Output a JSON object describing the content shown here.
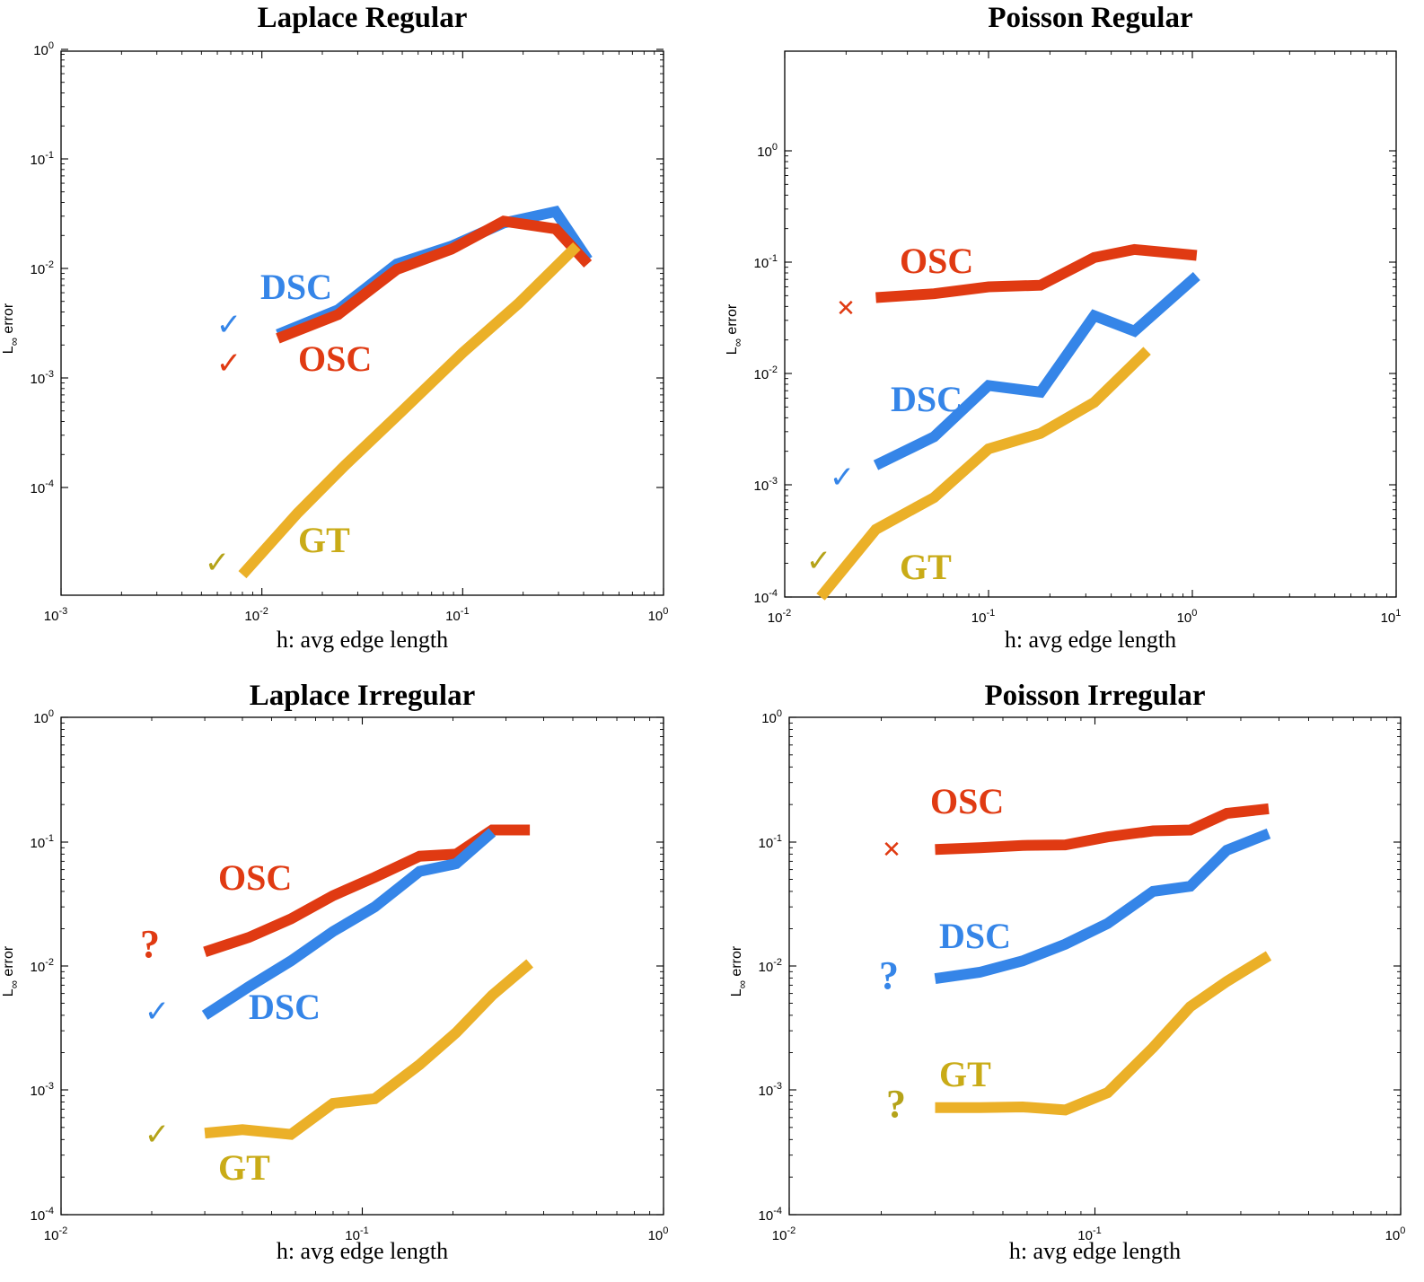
{
  "chart_data": [
    {
      "type": "line",
      "title": "Laplace Regular",
      "xlabel": "h: avg edge length",
      "ylabel_base": "L",
      "ylabel_sub": "∞",
      "ylabel_rest": " error",
      "xscale": "log",
      "yscale": "log",
      "xlim": [
        0.001,
        1
      ],
      "ylim": [
        1e-05,
        1
      ],
      "xticks": [
        -3,
        -2,
        -1,
        0
      ],
      "yticks": [
        -4,
        -3,
        -2,
        -1,
        0
      ],
      "tick_base": "10",
      "series": [
        {
          "key": "DSC",
          "color": "#3585e8",
          "x": [
            0.012,
            0.024,
            0.047,
            0.088,
            0.16,
            0.29,
            0.42
          ],
          "y": [
            0.0025,
            0.0042,
            0.011,
            0.016,
            0.026,
            0.033,
            0.012
          ]
        },
        {
          "key": "OSC",
          "color": "#e03a12",
          "x": [
            0.012,
            0.024,
            0.047,
            0.088,
            0.16,
            0.29,
            0.42
          ],
          "y": [
            0.0023,
            0.0038,
            0.0098,
            0.015,
            0.027,
            0.023,
            0.011
          ]
        },
        {
          "key": "GT",
          "color": "#ebb028",
          "x": [
            0.008,
            0.015,
            0.026,
            0.05,
            0.1,
            0.19,
            0.37
          ],
          "y": [
            1.6e-05,
            5.8e-05,
            0.00016,
            0.0005,
            0.0017,
            0.0048,
            0.016
          ]
        }
      ],
      "annotations": [
        {
          "text": "DSC",
          "color": "#3585e8"
        },
        {
          "text": "OSC",
          "color": "#e03a12"
        },
        {
          "text": "GT",
          "color": "#c9ab17"
        }
      ],
      "marks": [
        {
          "symbol": "✓",
          "color": "#3585e8"
        },
        {
          "symbol": "✓",
          "color": "#e03a12"
        },
        {
          "symbol": "✓",
          "color": "#b5a319"
        }
      ]
    },
    {
      "type": "line",
      "title": "Poisson Regular",
      "xlabel": "h: avg edge length",
      "ylabel_base": "L",
      "ylabel_sub": "∞",
      "ylabel_rest": " error",
      "xscale": "log",
      "yscale": "log",
      "xlim": [
        0.01,
        10
      ],
      "ylim": [
        0.0001,
        100
      ],
      "xticks": [
        -2,
        -1,
        0,
        1
      ],
      "yticks": [
        -4,
        -3,
        -2,
        -1,
        0
      ],
      "tick_base": "10",
      "series": [
        {
          "key": "OSC",
          "color": "#e03a12",
          "x": [
            0.028,
            0.054,
            0.1,
            0.18,
            0.33,
            0.52,
            1.05
          ],
          "y": [
            0.048,
            0.052,
            0.06,
            0.062,
            0.11,
            0.13,
            0.115
          ]
        },
        {
          "key": "DSC",
          "color": "#3585e8",
          "x": [
            0.028,
            0.054,
            0.1,
            0.18,
            0.33,
            0.52,
            1.05
          ],
          "y": [
            0.0015,
            0.0027,
            0.0078,
            0.0068,
            0.033,
            0.024,
            0.075
          ]
        },
        {
          "key": "GT",
          "color": "#ebb028",
          "x": [
            0.015,
            0.028,
            0.054,
            0.1,
            0.18,
            0.33,
            0.6
          ],
          "y": [
            0.0001,
            0.0004,
            0.00077,
            0.0021,
            0.0029,
            0.0055,
            0.016
          ]
        }
      ],
      "annotations": [
        {
          "text": "OSC",
          "color": "#e03a12"
        },
        {
          "text": "DSC",
          "color": "#3585e8"
        },
        {
          "text": "GT",
          "color": "#c9ab17"
        }
      ],
      "marks": [
        {
          "symbol": "✕",
          "color": "#e03a12"
        },
        {
          "symbol": "✓",
          "color": "#3585e8"
        },
        {
          "symbol": "✓",
          "color": "#b5a319"
        }
      ]
    },
    {
      "type": "line",
      "title": "Laplace Irregular",
      "xlabel": "h: avg edge length",
      "ylabel_base": "L",
      "ylabel_sub": "∞",
      "ylabel_rest": " error",
      "xscale": "log",
      "yscale": "log",
      "xlim": [
        0.01,
        1
      ],
      "ylim": [
        0.0001,
        1
      ],
      "xticks": [
        -2,
        -1,
        0
      ],
      "yticks": [
        -4,
        -3,
        -2,
        -1,
        0
      ],
      "tick_base": "10",
      "series": [
        {
          "key": "OSC",
          "color": "#e03a12",
          "x": [
            0.03,
            0.042,
            0.058,
            0.08,
            0.11,
            0.155,
            0.205,
            0.27,
            0.36
          ],
          "y": [
            0.013,
            0.017,
            0.024,
            0.037,
            0.052,
            0.077,
            0.08,
            0.125,
            0.125
          ]
        },
        {
          "key": "DSC",
          "color": "#3585e8",
          "x": [
            0.03,
            0.042,
            0.058,
            0.08,
            0.11,
            0.155,
            0.205,
            0.27
          ],
          "y": [
            0.004,
            0.0068,
            0.011,
            0.019,
            0.03,
            0.058,
            0.067,
            0.12
          ]
        },
        {
          "key": "GT",
          "color": "#ebb028",
          "x": [
            0.03,
            0.04,
            0.058,
            0.08,
            0.11,
            0.155,
            0.205,
            0.27,
            0.36
          ],
          "y": [
            0.00045,
            0.00048,
            0.00044,
            0.00078,
            0.00085,
            0.0016,
            0.0029,
            0.0058,
            0.0105
          ]
        }
      ],
      "annotations": [
        {
          "text": "OSC",
          "color": "#e03a12"
        },
        {
          "text": "DSC",
          "color": "#3585e8"
        },
        {
          "text": "GT",
          "color": "#c9ab17"
        }
      ],
      "marks": [
        {
          "symbol": "?",
          "color": "#e03a12"
        },
        {
          "symbol": "✓",
          "color": "#3585e8"
        },
        {
          "symbol": "✓",
          "color": "#b5a319"
        }
      ]
    },
    {
      "type": "line",
      "title": "Poisson Irregular",
      "xlabel": "h: avg edge length",
      "ylabel_base": "L",
      "ylabel_sub": "∞",
      "ylabel_rest": " error",
      "xscale": "log",
      "yscale": "log",
      "xlim": [
        0.01,
        1
      ],
      "ylim": [
        0.0001,
        1
      ],
      "xticks": [
        -2,
        -1,
        0
      ],
      "yticks": [
        -4,
        -3,
        -2,
        -1,
        0
      ],
      "tick_base": "10",
      "series": [
        {
          "key": "OSC",
          "color": "#e03a12",
          "x": [
            0.03,
            0.042,
            0.058,
            0.08,
            0.11,
            0.155,
            0.205,
            0.27,
            0.37
          ],
          "y": [
            0.087,
            0.09,
            0.094,
            0.095,
            0.11,
            0.123,
            0.125,
            0.17,
            0.185
          ]
        },
        {
          "key": "DSC",
          "color": "#3585e8",
          "x": [
            0.03,
            0.042,
            0.058,
            0.08,
            0.11,
            0.155,
            0.205,
            0.27,
            0.37
          ],
          "y": [
            0.0079,
            0.0089,
            0.011,
            0.015,
            0.022,
            0.04,
            0.044,
            0.086,
            0.117
          ]
        },
        {
          "key": "GT",
          "color": "#ebb028",
          "x": [
            0.03,
            0.042,
            0.058,
            0.08,
            0.11,
            0.155,
            0.205,
            0.27,
            0.37
          ],
          "y": [
            0.00072,
            0.00072,
            0.00073,
            0.00069,
            0.00095,
            0.0022,
            0.0047,
            0.0075,
            0.0121
          ]
        }
      ],
      "annotations": [
        {
          "text": "OSC",
          "color": "#e03a12"
        },
        {
          "text": "DSC",
          "color": "#3585e8"
        },
        {
          "text": "GT",
          "color": "#c9ab17"
        }
      ],
      "marks": [
        {
          "symbol": "✕",
          "color": "#e03a12"
        },
        {
          "symbol": "?",
          "color": "#3585e8"
        },
        {
          "symbol": "?",
          "color": "#b5a319"
        }
      ]
    }
  ]
}
